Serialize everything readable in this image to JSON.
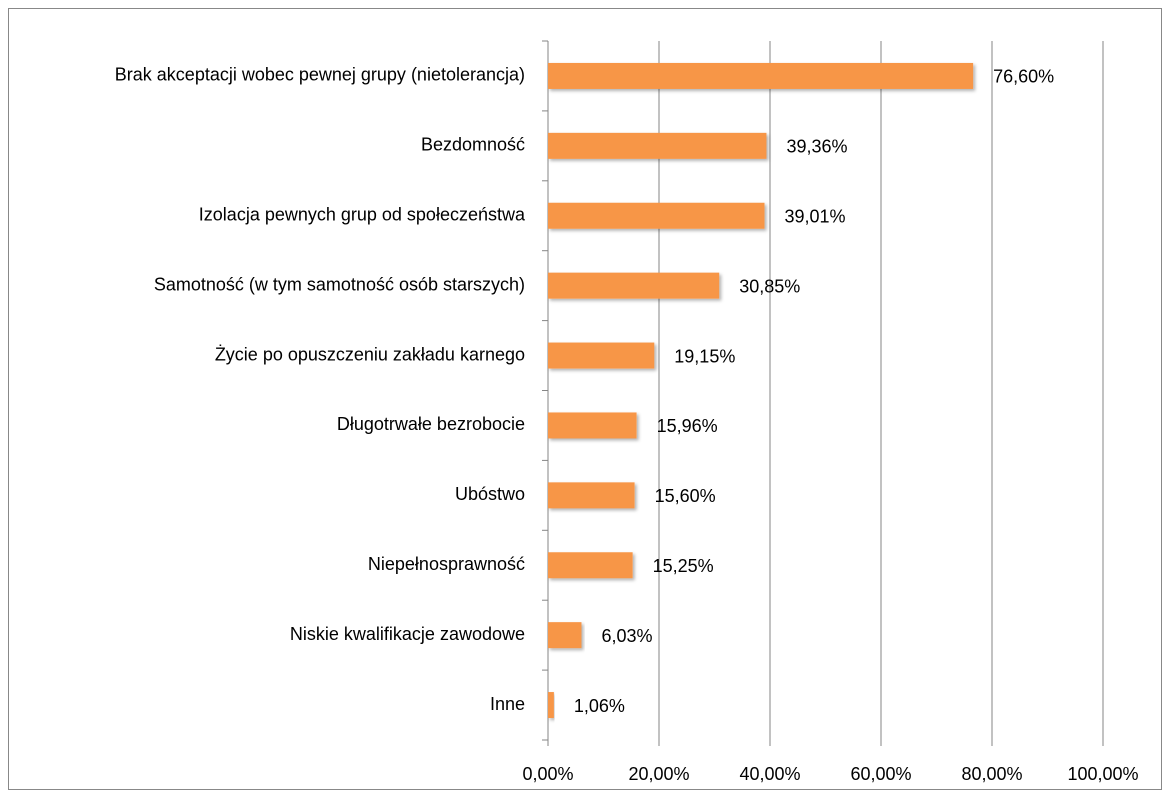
{
  "chart_data": {
    "type": "bar",
    "orientation": "horizontal",
    "categories": [
      "Brak akceptacji wobec pewnej grupy (nietolerancja)",
      "Bezdomność",
      "Izolacja pewnych grup od społeczeństwa",
      "Samotność (w tym samotność osób starszych)",
      "Życie po opuszczeniu zakładu karnego",
      "Długotrwałe bezrobocie",
      "Ubóstwo",
      "Niepełnosprawność",
      "Niskie kwalifikacje zawodowe",
      "Inne"
    ],
    "values": [
      76.6,
      39.36,
      39.01,
      30.85,
      19.15,
      15.96,
      15.6,
      15.25,
      6.03,
      1.06
    ],
    "value_labels": [
      "76,60%",
      "39,36%",
      "39,01%",
      "30,85%",
      "19,15%",
      "15,96%",
      "15,60%",
      "15,25%",
      "6,03%",
      "1,06%"
    ],
    "color": "#f79646",
    "xlim": [
      0,
      100
    ],
    "xticks": [
      {
        "value": 0,
        "label": "0,00%"
      },
      {
        "value": 20,
        "label": "20,00%"
      },
      {
        "value": 40,
        "label": "40,00%"
      },
      {
        "value": 60,
        "label": "60,00%"
      },
      {
        "value": 80,
        "label": "80,00%"
      },
      {
        "value": 100,
        "label": "100,00%"
      }
    ],
    "grid": true
  }
}
